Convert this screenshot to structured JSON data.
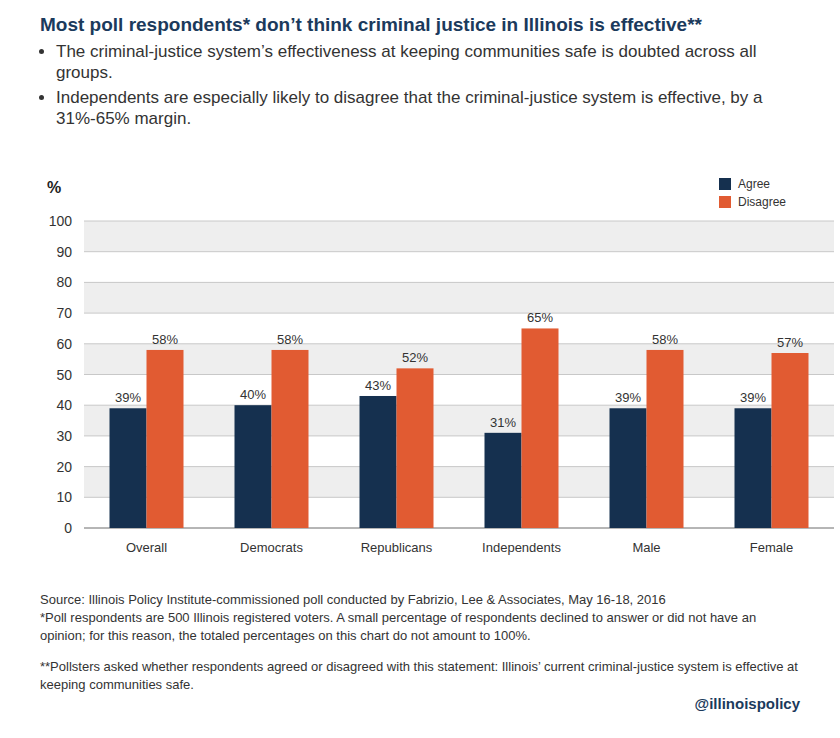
{
  "chart_data": {
    "type": "bar",
    "title": "Most poll respondents* don’t think criminal justice in Illinois is effective**",
    "subtitle": [
      "The criminal-justice system’s effectiveness at keeping communities safe is doubted across all groups.",
      "Independents are especially likely to disagree that the criminal-justice system is effective, by a 31%-65% margin."
    ],
    "y_label": "%",
    "categories": [
      "Overall",
      "Democrats",
      "Republicans",
      "Independents",
      "Male",
      "Female"
    ],
    "series": [
      {
        "name": "Agree",
        "color": "#15304f",
        "values": [
          39,
          40,
          43,
          31,
          39,
          39
        ],
        "value_labels": [
          "39%",
          "40%",
          "43%",
          "31%",
          "39%",
          "39%"
        ]
      },
      {
        "name": "Disagree",
        "color": "#e15b32",
        "values": [
          58,
          58,
          52,
          65,
          58,
          57
        ],
        "value_labels": [
          "58%",
          "58%",
          "52%",
          "65%",
          "58%",
          "57%"
        ]
      }
    ],
    "ylim": [
      0,
      100
    ],
    "yticks": [
      0,
      10,
      20,
      30,
      40,
      50,
      60,
      70,
      80,
      90,
      100
    ],
    "grid": true,
    "legend": "upper right",
    "data_labels": true,
    "source": "Source: Illinois Policy Institute-commissioned poll conducted by Fabrizio, Lee & Associates, May 16-18, 2016",
    "footnotes": [
      "*Poll respondents are 500 Illinois registered voters. A small percentage of respondents declined to answer or did not have an opinion; for this reason, the totaled percentages on this chart do not amount to 100%.",
      "**Pollsters asked whether respondents agreed or disagreed with this statement: Illinois’ current criminal-justice system is effective at keeping communities safe."
    ],
    "credit": "@illinoispolicy"
  }
}
